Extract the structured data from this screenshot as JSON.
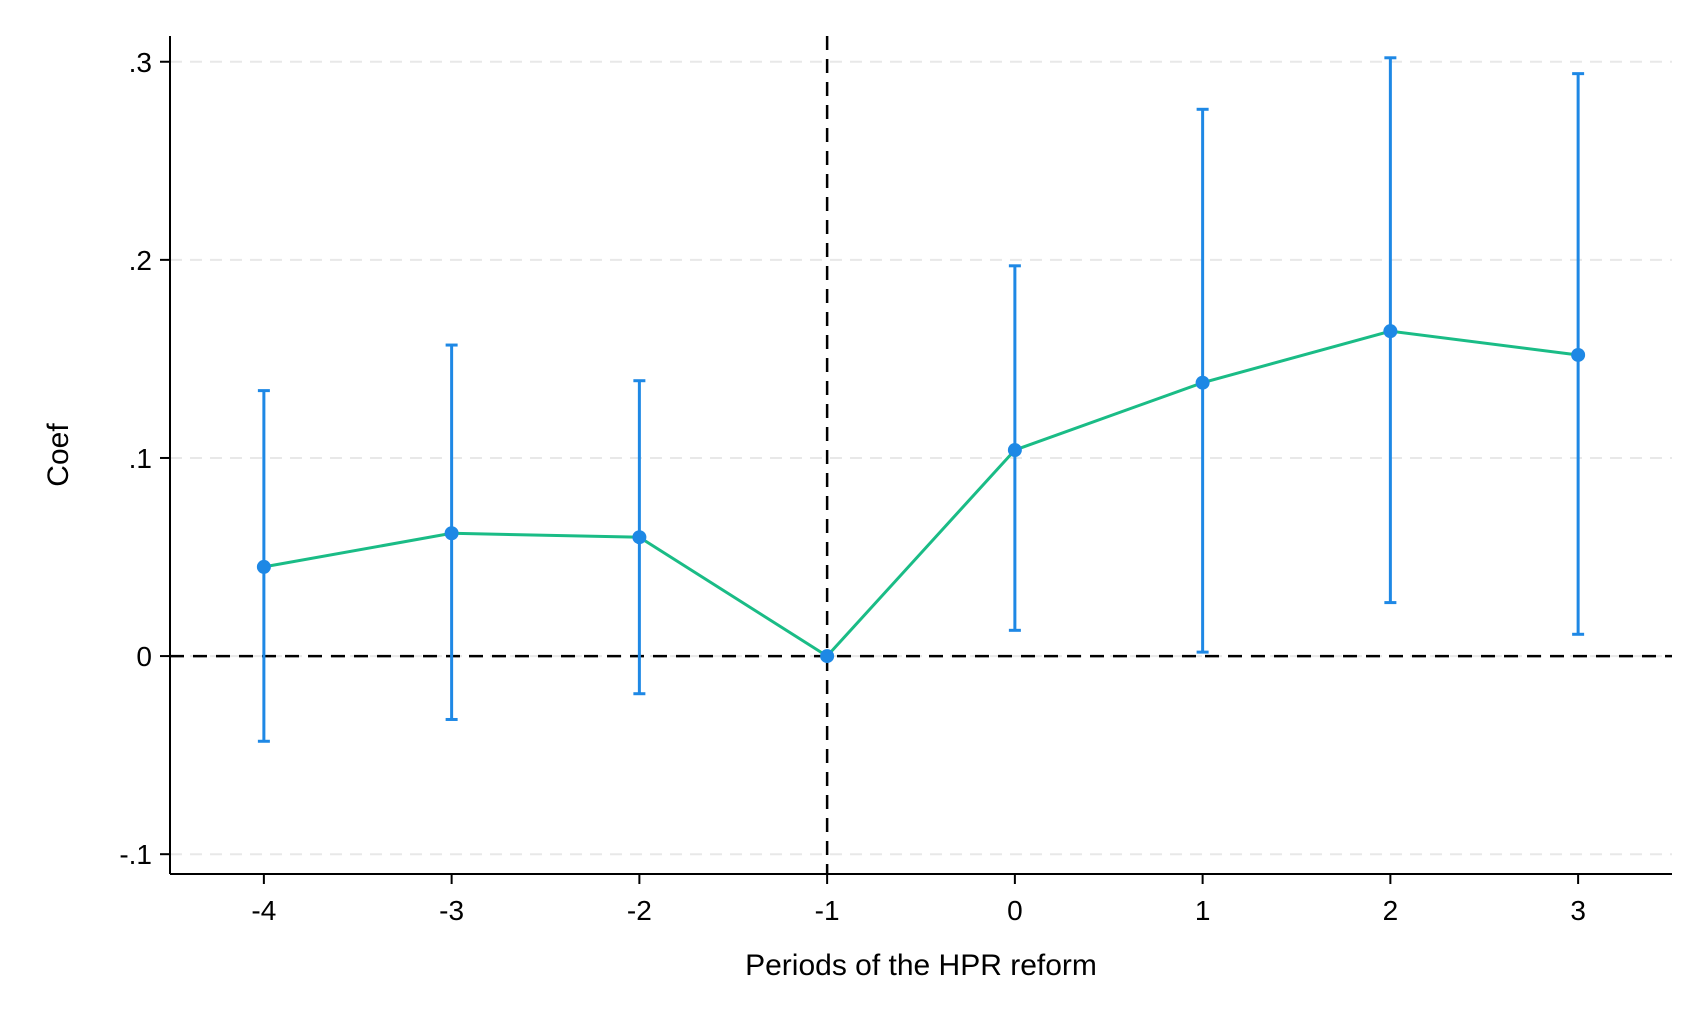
{
  "chart_data": {
    "type": "line",
    "title": "",
    "xlabel": "Periods of the HPR reform",
    "ylabel": "Coef",
    "x": [
      -4,
      -3,
      -2,
      -1,
      0,
      1,
      2,
      3
    ],
    "x_tick_labels": [
      "-4",
      "-3",
      "-2",
      "-1",
      "0",
      "1",
      "2",
      "3"
    ],
    "xlim": [
      -4.5,
      3.5
    ],
    "ylim": [
      -0.11,
      0.313
    ],
    "y_ticks": [
      -0.1,
      0,
      0.1,
      0.2,
      0.3
    ],
    "y_tick_labels": [
      "-.1",
      "0",
      ".1",
      ".2",
      ".3"
    ],
    "series": [
      {
        "type": "line",
        "values": [
          0.045,
          0.062,
          0.06,
          0.0,
          0.104,
          0.138,
          0.164,
          0.152
        ],
        "color": "#1abc86"
      },
      {
        "type": "errorbar",
        "lower": [
          -0.043,
          -0.032,
          -0.019,
          0.0,
          0.013,
          0.002,
          0.027,
          0.011
        ],
        "upper": [
          0.134,
          0.157,
          0.139,
          0.0,
          0.197,
          0.276,
          0.302,
          0.294
        ],
        "color": "#1e88e5"
      }
    ],
    "reference_lines": {
      "horizontal_y": 0,
      "vertical_x": -1,
      "style": "dashed",
      "color": "#000000"
    },
    "grid": {
      "horizontal": true,
      "vertical": false,
      "style": "dashed",
      "color": "#e8e8e8"
    },
    "legend": "none"
  }
}
